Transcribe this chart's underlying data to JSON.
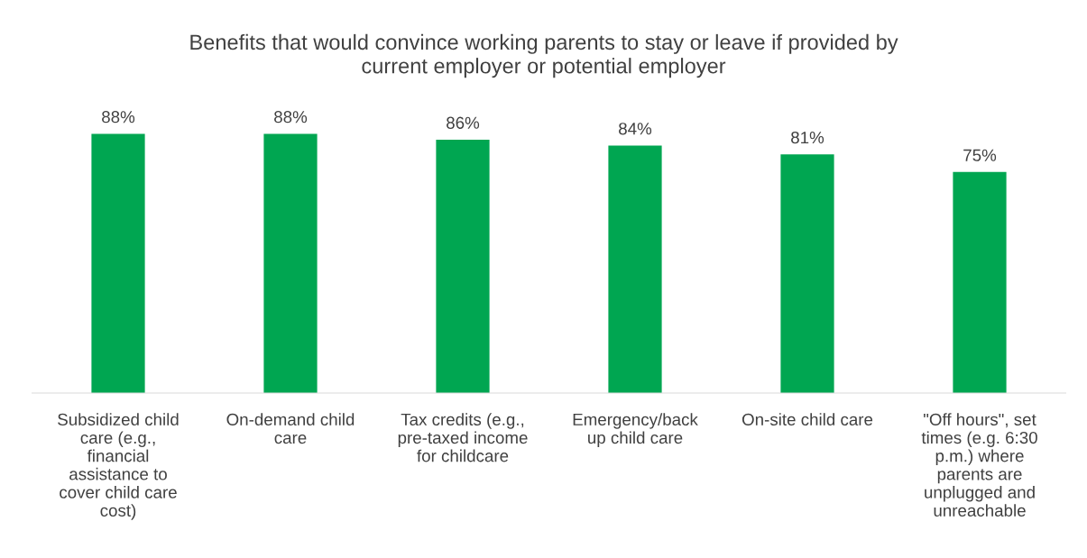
{
  "chart_data": {
    "type": "bar",
    "title": "Benefits that would convince working parents to stay or leave if provided by\ncurrent employer or potential employer",
    "categories": [
      "Subsidized child\ncare (e.g.,\nfinancial\nassistance to\ncover child care\ncost)",
      "On-demand child\ncare",
      "Tax credits (e.g.,\npre-taxed income\nfor childcare",
      "Emergency/back\nup child care",
      "On-site child care",
      "\"Off hours\", set\ntimes (e.g. 6:30\np.m.) where\nparents are\nunplugged and\nunreachable"
    ],
    "values": [
      88,
      88,
      86,
      84,
      81,
      75
    ],
    "value_labels": [
      "88%",
      "88%",
      "86%",
      "84%",
      "81%",
      "75%"
    ],
    "color": "#00a651",
    "tick_labels": "x",
    "grid": false,
    "legend": false
  }
}
